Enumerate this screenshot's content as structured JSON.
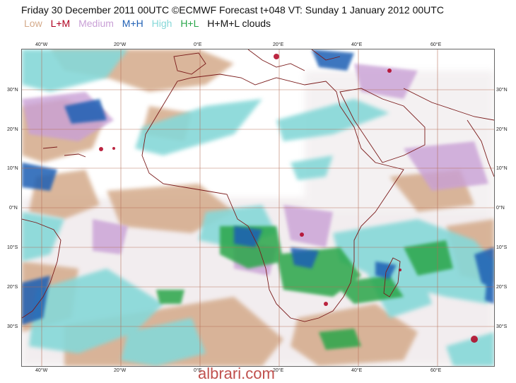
{
  "header": {
    "title": "Friday 30 December 2011 00UTC ©ECMWF Forecast t+048 VT: Sunday 1 January 2012 00UTC"
  },
  "legend": {
    "items": [
      {
        "label": "Low",
        "color": "#d4aa8a"
      },
      {
        "label": "L+M",
        "color": "#b00020"
      },
      {
        "label": "Medium",
        "color": "#c9a0d6"
      },
      {
        "label": "M+H",
        "color": "#1f5fb4"
      },
      {
        "label": "High",
        "color": "#86d8d8"
      },
      {
        "label": "H+L",
        "color": "#2aa64a"
      },
      {
        "label": "H+M+L clouds",
        "color": "#111111"
      }
    ]
  },
  "axes": {
    "lon_labels": [
      "40°W",
      "20°W",
      "0°E",
      "20°E",
      "40°E",
      "60°E"
    ],
    "lat_labels": [
      "30°N",
      "20°N",
      "10°N",
      "0°N",
      "10°S",
      "20°S",
      "30°S"
    ]
  },
  "watermark": "albrari.com"
}
